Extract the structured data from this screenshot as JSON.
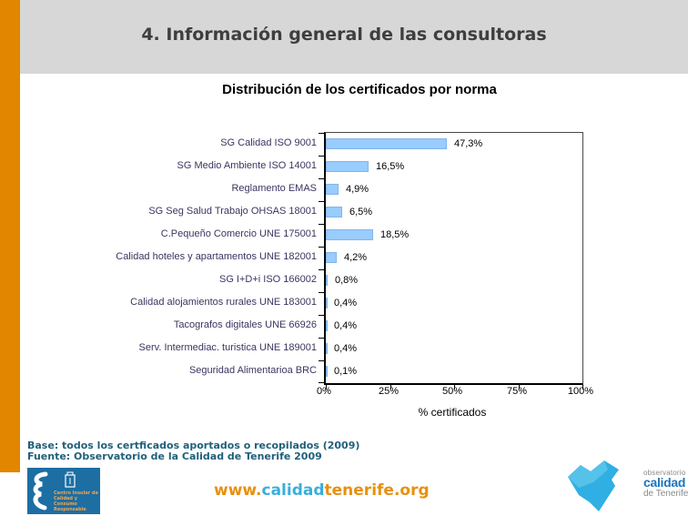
{
  "header": {
    "title": "4. Información general de las consultoras"
  },
  "chart_data": {
    "type": "bar",
    "orientation": "horizontal",
    "title": "Distribución de los certificados por norma",
    "xlabel": "% certificados",
    "xlim": [
      0,
      100
    ],
    "x_ticks": [
      "0%",
      "25%",
      "50%",
      "75%",
      "100%"
    ],
    "grid": false,
    "bar_color": "#99CCFF",
    "categories": [
      "SG Calidad ISO 9001",
      "SG Medio Ambiente ISO 14001",
      "Reglamento EMAS",
      "SG Seg Salud Trabajo OHSAS 18001",
      "C.Pequeño Comercio UNE 175001",
      "Calidad hoteles y apartamentos UNE 182001",
      "SG I+D+i ISO 166002",
      "Calidad alojamientos rurales UNE 183001",
      "Tacografos digitales UNE 66926",
      "Serv. Intermediac. turistica UNE 189001",
      "Seguridad Alimentarioa BRC"
    ],
    "values": [
      47.3,
      16.5,
      4.9,
      6.5,
      18.5,
      4.2,
      0.8,
      0.4,
      0.4,
      0.4,
      0.1
    ],
    "value_labels": [
      "47,3%",
      "16,5%",
      "4,9%",
      "6,5%",
      "18,5%",
      "4,2%",
      "0,8%",
      "0,4%",
      "0,4%",
      "0,4%",
      "0,1%"
    ]
  },
  "footer": {
    "base_line": "Base: todos los certficados aportados o recopilados (2009)",
    "fuente_line": "Fuente: Observatorio de la Calidad de Tenerife 2009",
    "link": {
      "www": "www.",
      "calidad": "calidad",
      "rest": "tenerife.org"
    },
    "left_logo": {
      "text": "Centro Insular de Calidad y Consumo Responsable"
    },
    "right_logo": {
      "line1": "observatorio",
      "line2": "calidad",
      "line3": "de Tenerife"
    }
  },
  "colors": {
    "accent_orange": "#E28600",
    "header_bg": "#D7D7D7",
    "header_text": "#3E3E3E",
    "bar_fill": "#99CCFF",
    "category_label": "#3A3560",
    "footer_text": "#20607B",
    "link_orange": "#E8900F",
    "link_blue": "#3BAEDB",
    "left_logo_bg": "#1D6EA3",
    "island_blue": "#2FAFE3",
    "calidad_blue": "#1B75BC"
  }
}
